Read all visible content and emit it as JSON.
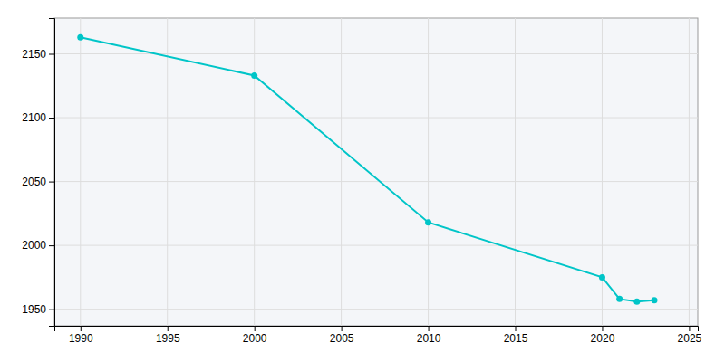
{
  "chart_data": {
    "type": "line",
    "x": [
      1990,
      2000,
      2010,
      2020,
      2021,
      2022,
      2023
    ],
    "values": [
      2163,
      2133,
      2018,
      1975,
      1958,
      1956,
      1957
    ],
    "color": "#00C5C8",
    "marker": "circle",
    "xlim": [
      1988.5,
      2025.5
    ],
    "ylim": [
      1937,
      2178
    ],
    "xticks": [
      1990,
      1995,
      2000,
      2005,
      2010,
      2015,
      2020,
      2025
    ],
    "yticks": [
      1950,
      2000,
      2050,
      2100,
      2150
    ],
    "grid": true
  }
}
